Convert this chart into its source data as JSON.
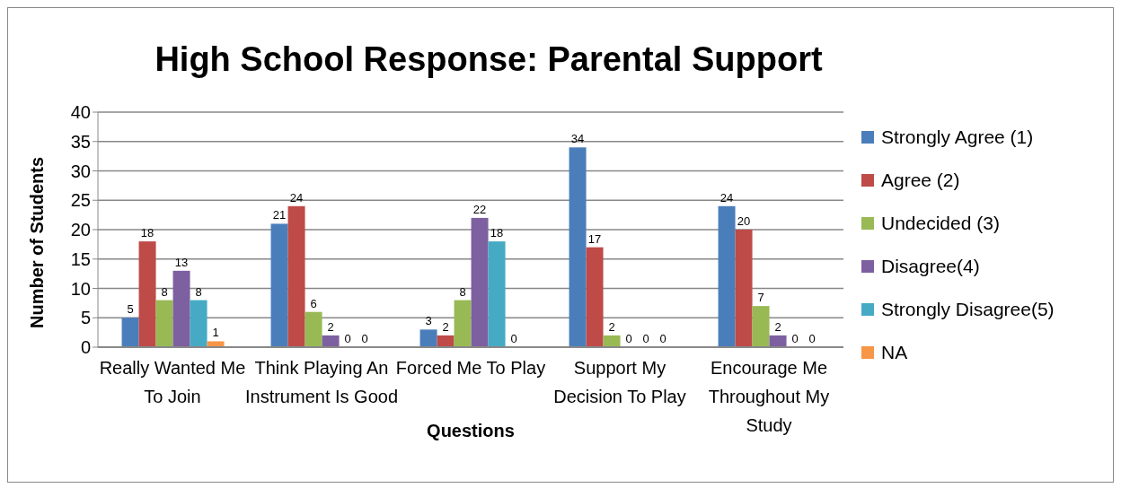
{
  "chart_data": {
    "type": "bar",
    "title": "High School Response: Parental Support",
    "xlabel": "Questions",
    "ylabel": "Number of Students",
    "categories": [
      "Really Wanted Me To Join",
      "Think Playing An Instrument Is Good",
      "Forced Me To Play",
      "Support My Decision To Play",
      "Encourage Me Throughout My Study"
    ],
    "series": [
      {
        "name": "Strongly Agree  (1)",
        "color": "#4a7ebb",
        "values": [
          5,
          21,
          3,
          34,
          24
        ]
      },
      {
        "name": "Agree (2)",
        "color": "#be4b48",
        "values": [
          18,
          24,
          2,
          17,
          20
        ]
      },
      {
        "name": "Undecided (3)",
        "color": "#98b954",
        "values": [
          8,
          6,
          8,
          2,
          7
        ]
      },
      {
        "name": "Disagree(4)",
        "color": "#7d60a0",
        "values": [
          13,
          2,
          22,
          0,
          2
        ]
      },
      {
        "name": "Strongly Disagree(5)",
        "color": "#46aac5",
        "values": [
          8,
          0,
          18,
          0,
          0
        ]
      },
      {
        "name": "NA",
        "color": "#f79646",
        "values": [
          1,
          0,
          0,
          0,
          0
        ]
      }
    ],
    "ylim": [
      0,
      40
    ],
    "yticks": [
      0,
      5,
      10,
      15,
      20,
      25,
      30,
      35,
      40
    ],
    "grid": "y",
    "legend": "right",
    "data_labels": true
  }
}
